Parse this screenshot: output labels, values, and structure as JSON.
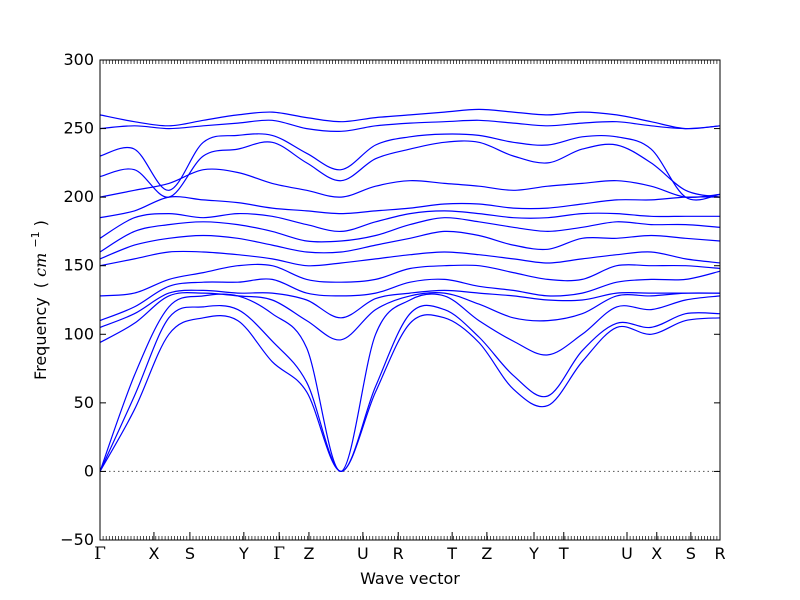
{
  "chart_data": {
    "type": "line",
    "title": "",
    "xlabel": "Wave vector",
    "ylabel": "Frequency",
    "ylabel_unit_prefix": "(",
    "ylabel_unit": "cm",
    "ylabel_unit_sup": "−1",
    "ylabel_unit_suffix": ")",
    "ylim": [
      -50,
      300
    ],
    "yticks": [
      -50,
      0,
      50,
      100,
      150,
      200,
      250,
      300
    ],
    "xlim": [
      0,
      1
    ],
    "line_color": "#0000ff",
    "zero_line": {
      "y": 0,
      "style": "dotted",
      "color": "#555555"
    },
    "kpoints": [
      {
        "label": "Γ",
        "x": 0.0
      },
      {
        "label": "X",
        "x": 0.087
      },
      {
        "label": "S",
        "x": 0.145
      },
      {
        "label": "Y",
        "x": 0.232
      },
      {
        "label": "Γ",
        "x": 0.289
      },
      {
        "label": "Z",
        "x": 0.337
      },
      {
        "label": "U",
        "x": 0.424
      },
      {
        "label": "R",
        "x": 0.481
      },
      {
        "label": "T",
        "x": 0.568
      },
      {
        "label": "Z",
        "x": 0.624
      },
      {
        "label": "Y",
        "x": 0.7
      },
      {
        "label": "T",
        "x": 0.748
      },
      {
        "label": "U",
        "x": 0.85
      },
      {
        "label": "X",
        "x": 0.898
      },
      {
        "label": "S",
        "x": 0.953
      },
      {
        "label": "R",
        "x": 1.0
      }
    ],
    "series": [
      {
        "values": [
          0,
          45,
          100,
          112,
          110,
          80,
          58,
          0,
          58,
          108,
          112,
          94,
          60,
          48,
          80,
          105,
          100,
          110,
          112
        ]
      },
      {
        "values": [
          0,
          55,
          112,
          120,
          118,
          95,
          65,
          0,
          62,
          115,
          118,
          98,
          70,
          55,
          88,
          108,
          105,
          115,
          115
        ]
      },
      {
        "values": [
          0,
          70,
          120,
          128,
          128,
          115,
          90,
          0,
          100,
          125,
          128,
          110,
          95,
          85,
          100,
          120,
          118,
          125,
          128
        ]
      },
      {
        "values": [
          94,
          108,
          128,
          130,
          128,
          125,
          110,
          96,
          118,
          128,
          130,
          122,
          112,
          110,
          115,
          128,
          128,
          130,
          130
        ]
      },
      {
        "values": [
          105,
          115,
          130,
          132,
          130,
          130,
          125,
          112,
          126,
          130,
          132,
          130,
          128,
          125,
          125,
          130,
          130,
          130,
          130
        ]
      },
      {
        "values": [
          110,
          120,
          135,
          138,
          138,
          140,
          130,
          128,
          130,
          138,
          140,
          135,
          132,
          128,
          130,
          138,
          140,
          140,
          146
        ]
      },
      {
        "values": [
          128,
          130,
          140,
          145,
          150,
          150,
          140,
          138,
          140,
          148,
          150,
          150,
          145,
          140,
          140,
          150,
          150,
          150,
          148
        ]
      },
      {
        "values": [
          150,
          155,
          160,
          160,
          158,
          155,
          150,
          152,
          155,
          158,
          160,
          158,
          155,
          152,
          155,
          158,
          160,
          155,
          152
        ]
      },
      {
        "values": [
          155,
          165,
          170,
          172,
          170,
          165,
          160,
          160,
          165,
          170,
          175,
          172,
          165,
          162,
          170,
          170,
          172,
          170,
          168
        ]
      },
      {
        "values": [
          160,
          175,
          180,
          182,
          180,
          175,
          168,
          168,
          172,
          180,
          185,
          182,
          178,
          175,
          178,
          182,
          180,
          180,
          178
        ]
      },
      {
        "values": [
          170,
          185,
          188,
          185,
          188,
          186,
          180,
          175,
          182,
          188,
          190,
          188,
          185,
          185,
          188,
          188,
          186,
          186,
          186
        ]
      },
      {
        "values": [
          185,
          190,
          200,
          198,
          196,
          192,
          190,
          188,
          190,
          192,
          195,
          195,
          192,
          192,
          195,
          198,
          198,
          200,
          200
        ]
      },
      {
        "values": [
          200,
          205,
          210,
          220,
          218,
          210,
          205,
          200,
          208,
          212,
          210,
          208,
          205,
          208,
          210,
          212,
          208,
          200,
          202
        ]
      },
      {
        "values": [
          215,
          220,
          200,
          230,
          235,
          240,
          225,
          212,
          228,
          235,
          240,
          240,
          230,
          225,
          235,
          238,
          225,
          205,
          200
        ]
      },
      {
        "values": [
          230,
          235,
          205,
          240,
          245,
          245,
          232,
          220,
          238,
          244,
          246,
          245,
          240,
          238,
          244,
          244,
          235,
          200,
          202
        ]
      },
      {
        "values": [
          250,
          252,
          250,
          252,
          254,
          256,
          250,
          248,
          252,
          254,
          255,
          256,
          254,
          252,
          254,
          255,
          252,
          250,
          252
        ]
      },
      {
        "values": [
          260,
          255,
          252,
          256,
          260,
          262,
          258,
          255,
          258,
          260,
          262,
          264,
          262,
          260,
          262,
          260,
          255,
          250,
          252
        ]
      }
    ]
  }
}
